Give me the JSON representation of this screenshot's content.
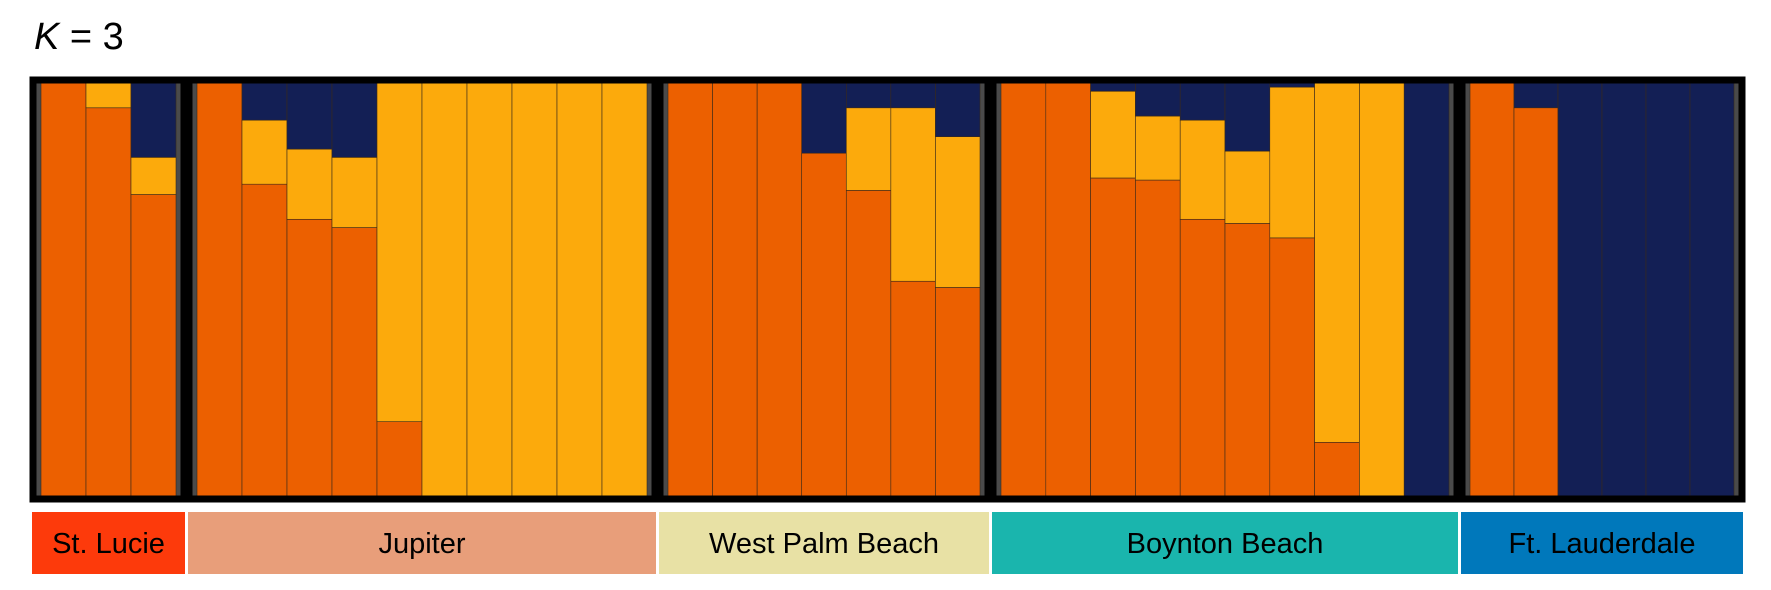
{
  "title_var": "K",
  "title_rest": " = 3",
  "colors": {
    "cluster1": "#ec6000",
    "cluster2": "#fcaa0c",
    "cluster3": "#131f55",
    "frame": "#000000",
    "inner_border": "#4a4a4a"
  },
  "chart_data": {
    "type": "bar",
    "stacked": true,
    "title": "K = 3",
    "ylim": [
      0,
      1
    ],
    "series_order": [
      "cluster1",
      "cluster2",
      "cluster3"
    ],
    "populations": [
      {
        "name": "St. Lucie",
        "label_color": "#fd3a0b",
        "individuals": [
          [
            1.0,
            0.0,
            0.0
          ],
          [
            0.94,
            0.06,
            0.0
          ],
          [
            0.73,
            0.09,
            0.18
          ]
        ]
      },
      {
        "name": "Jupiter",
        "label_color": "#e89e7a",
        "individuals": [
          [
            1.0,
            0.0,
            0.0
          ],
          [
            0.755,
            0.155,
            0.09
          ],
          [
            0.67,
            0.17,
            0.16
          ],
          [
            0.65,
            0.17,
            0.18
          ],
          [
            0.18,
            0.82,
            0.0
          ],
          [
            0.0,
            1.0,
            0.0
          ],
          [
            0.0,
            1.0,
            0.0
          ],
          [
            0.0,
            1.0,
            0.0
          ],
          [
            0.0,
            1.0,
            0.0
          ],
          [
            0.0,
            1.0,
            0.0
          ]
        ]
      },
      {
        "name": "West Palm Beach",
        "label_color": "#e8e1a5",
        "individuals": [
          [
            1.0,
            0.0,
            0.0
          ],
          [
            1.0,
            0.0,
            0.0
          ],
          [
            1.0,
            0.0,
            0.0
          ],
          [
            0.83,
            0.0,
            0.17
          ],
          [
            0.74,
            0.2,
            0.06
          ],
          [
            0.52,
            0.42,
            0.06
          ],
          [
            0.505,
            0.365,
            0.13
          ]
        ]
      },
      {
        "name": "Boynton Beach",
        "label_color": "#1ab5ad",
        "individuals": [
          [
            1.0,
            0.0,
            0.0
          ],
          [
            1.0,
            0.0,
            0.0
          ],
          [
            0.77,
            0.21,
            0.02
          ],
          [
            0.765,
            0.155,
            0.08
          ],
          [
            0.67,
            0.24,
            0.09
          ],
          [
            0.66,
            0.175,
            0.165
          ],
          [
            0.625,
            0.365,
            0.01
          ],
          [
            0.13,
            0.87,
            0.0
          ],
          [
            0.0,
            1.0,
            0.0
          ],
          [
            0.0,
            0.0,
            1.0
          ]
        ]
      },
      {
        "name": "Ft. Lauderdale",
        "label_color": "#0078bb",
        "individuals": [
          [
            1.0,
            0.0,
            0.0
          ],
          [
            0.94,
            0.0,
            0.06
          ],
          [
            0.0,
            0.0,
            1.0
          ],
          [
            0.0,
            0.0,
            1.0
          ],
          [
            0.0,
            0.0,
            1.0
          ],
          [
            0.0,
            0.0,
            1.0
          ]
        ]
      }
    ]
  }
}
